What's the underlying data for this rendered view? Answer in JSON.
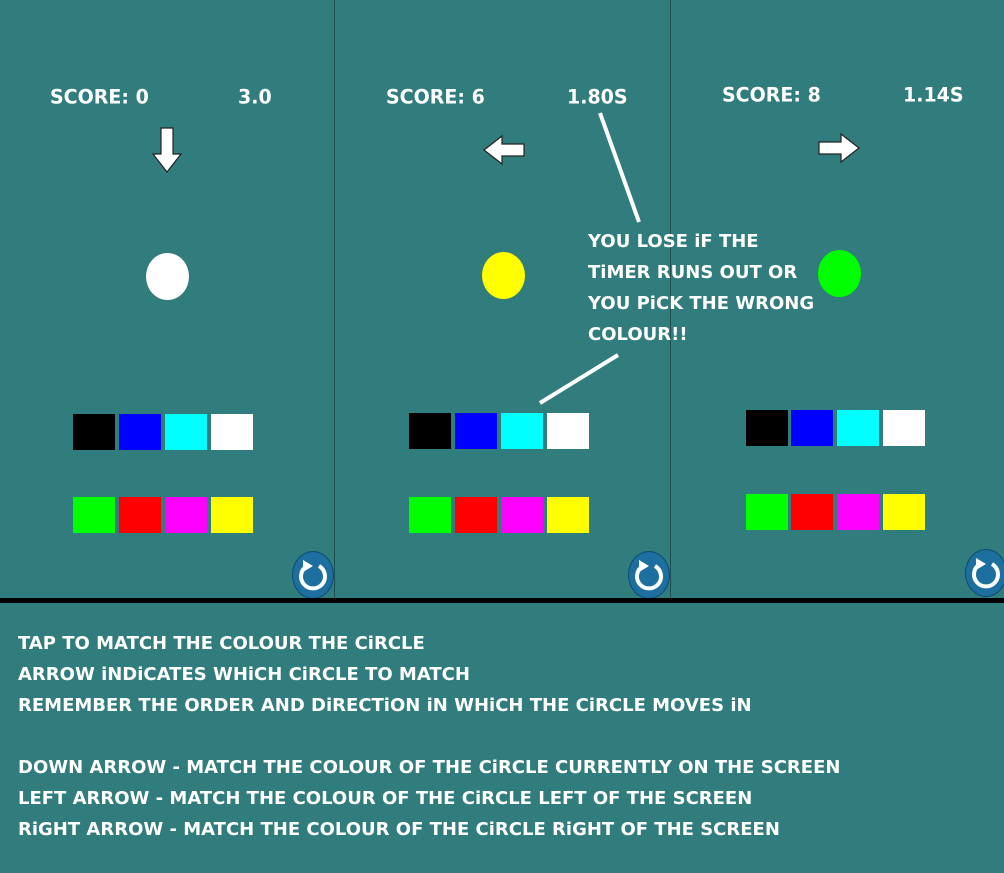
{
  "panels": [
    {
      "score": "SCORE: 0",
      "timer": "3.0",
      "arrow": "down-arrow-icon",
      "circle_color": "#ffffff"
    },
    {
      "score": "SCORE: 6",
      "timer": "1.80S",
      "arrow": "left-arrow-icon",
      "circle_color": "#ffff00"
    },
    {
      "score": "SCORE: 8",
      "timer": "1.14S",
      "arrow": "right-arrow-icon",
      "circle_color": "#00ff00"
    }
  ],
  "palette": {
    "top_row": [
      "#000000",
      "#0000ff",
      "#00ffff",
      "#ffffff"
    ],
    "bottom_row": [
      "#00ff00",
      "#ff0000",
      "#ff00ff",
      "#ffff00"
    ]
  },
  "annotation": {
    "line1": "YOU LOSE iF THE",
    "line2": "TiMER RUNS OUT OR",
    "line3": "YOU PiCK THE WRONG",
    "line4": "COLOUR!!"
  },
  "instructions": {
    "line1": "TAP TO MATCH THE COLOUR THE CiRCLE",
    "line2": "ARROW iNDiCATES WHiCH CiRCLE TO MATCH",
    "line3": "REMEMBER THE ORDER AND DiRECTiON iN WHiCH THE CiRCLE MOVES iN",
    "line4": "DOWN ARROW - MATCH THE COLOUR OF THE CiRCLE CURRENTLY ON THE SCREEN",
    "line5": "LEFT ARROW - MATCH THE COLOUR OF THE CiRCLE LEFT OF THE SCREEN",
    "line6": "RiGHT ARROW - MATCH THE COLOUR OF THE CiRCLE RiGHT OF THE SCREEN"
  },
  "colors": {
    "background": "#317c7c",
    "reset_button": "#1d6fa0"
  }
}
